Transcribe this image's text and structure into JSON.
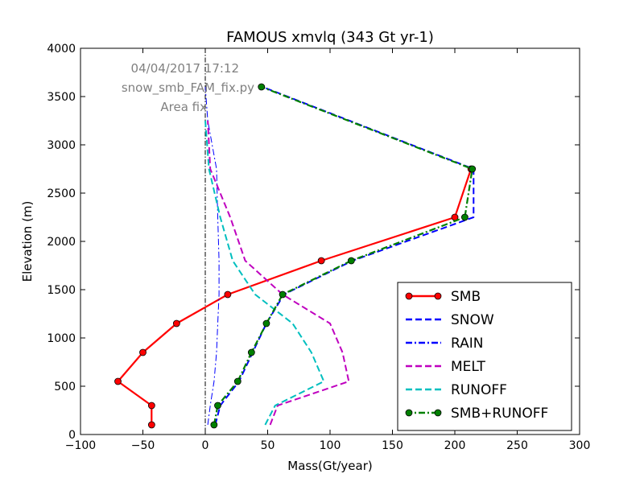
{
  "chart_data": {
    "type": "line",
    "title": "FAMOUS xmvlq (343 Gt yr-1)",
    "xlabel": "Mass(Gt/year)",
    "ylabel": "Elevation (m)",
    "xlim": [
      -100,
      300
    ],
    "ylim": [
      0,
      4000
    ],
    "xticks": [
      "−100",
      "−50",
      "0",
      "50",
      "100",
      "150",
      "200",
      "250",
      "300"
    ],
    "yticks": [
      "0",
      "500",
      "1000",
      "1500",
      "2000",
      "2500",
      "3000",
      "3500",
      "4000"
    ],
    "annotations": [
      "04/04/2017 17:12",
      "snow_smb_FAM_fix.py",
      "Area fix"
    ],
    "grid": false,
    "legend_position": "lower-right",
    "series": [
      {
        "name": "SMB",
        "color": "#ff0000",
        "style": "solid",
        "marker": "circle",
        "x": [
          -43,
          -43,
          -70,
          -50,
          -23,
          18,
          93,
          200,
          213
        ],
        "y": [
          100,
          300,
          550,
          850,
          1150,
          1450,
          1800,
          2250,
          2750
        ]
      },
      {
        "name": "SNOW",
        "color": "#0000ff",
        "style": "dashed",
        "marker": "none",
        "x": [
          8,
          12,
          27,
          38,
          49,
          63,
          118,
          215,
          215,
          46
        ],
        "y": [
          100,
          300,
          550,
          850,
          1150,
          1450,
          1800,
          2250,
          2750,
          3600
        ]
      },
      {
        "name": "RAIN",
        "color": "#0000ff",
        "style": "dashdot",
        "marker": "none",
        "x": [
          2,
          4,
          7,
          9,
          10,
          11,
          11,
          10,
          9,
          2,
          0
        ],
        "y": [
          100,
          300,
          550,
          850,
          1150,
          1450,
          1800,
          2250,
          2750,
          3250,
          3600
        ]
      },
      {
        "name": "MELT",
        "color": "#bf00bf",
        "style": "dashed",
        "marker": "none",
        "x": [
          52,
          58,
          115,
          110,
          100,
          62,
          32,
          20,
          4,
          2
        ],
        "y": [
          100,
          300,
          550,
          850,
          1150,
          1450,
          1800,
          2250,
          2750,
          3250
        ]
      },
      {
        "name": "RUNOFF",
        "color": "#00bfbf",
        "style": "dashed",
        "marker": "none",
        "x": [
          48,
          56,
          95,
          85,
          70,
          40,
          22,
          12,
          3,
          0
        ],
        "y": [
          100,
          300,
          550,
          850,
          1150,
          1450,
          1800,
          2250,
          2750,
          3250
        ]
      },
      {
        "name": "SMB+RUNOFF",
        "color": "#008000",
        "style": "dashdot",
        "marker": "circle",
        "x": [
          7,
          10,
          26,
          37,
          49,
          62,
          117,
          208,
          214,
          45
        ],
        "y": [
          100,
          300,
          550,
          850,
          1150,
          1450,
          1800,
          2250,
          2750,
          3600
        ]
      }
    ]
  }
}
